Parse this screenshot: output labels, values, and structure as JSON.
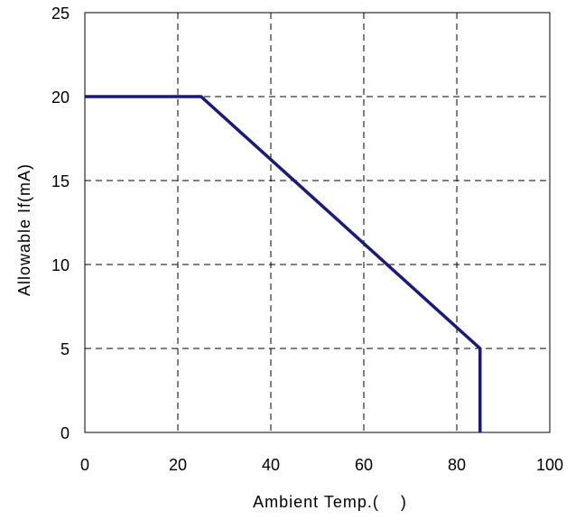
{
  "chart_data": {
    "type": "line",
    "title": "",
    "xlabel": "Ambient Temp.(    )",
    "ylabel": "Allowable If(mA)",
    "xlim": [
      0,
      100
    ],
    "ylim": [
      0,
      25
    ],
    "x_ticks": [
      0,
      20,
      40,
      60,
      80,
      100
    ],
    "y_ticks": [
      0,
      5,
      10,
      15,
      20,
      25
    ],
    "grid": true,
    "grid_style": "dashed",
    "series": [
      {
        "color": "#1a1a7a",
        "points": [
          [
            0,
            20
          ],
          [
            25,
            20
          ],
          [
            85,
            5
          ],
          [
            85,
            0
          ]
        ]
      }
    ]
  }
}
